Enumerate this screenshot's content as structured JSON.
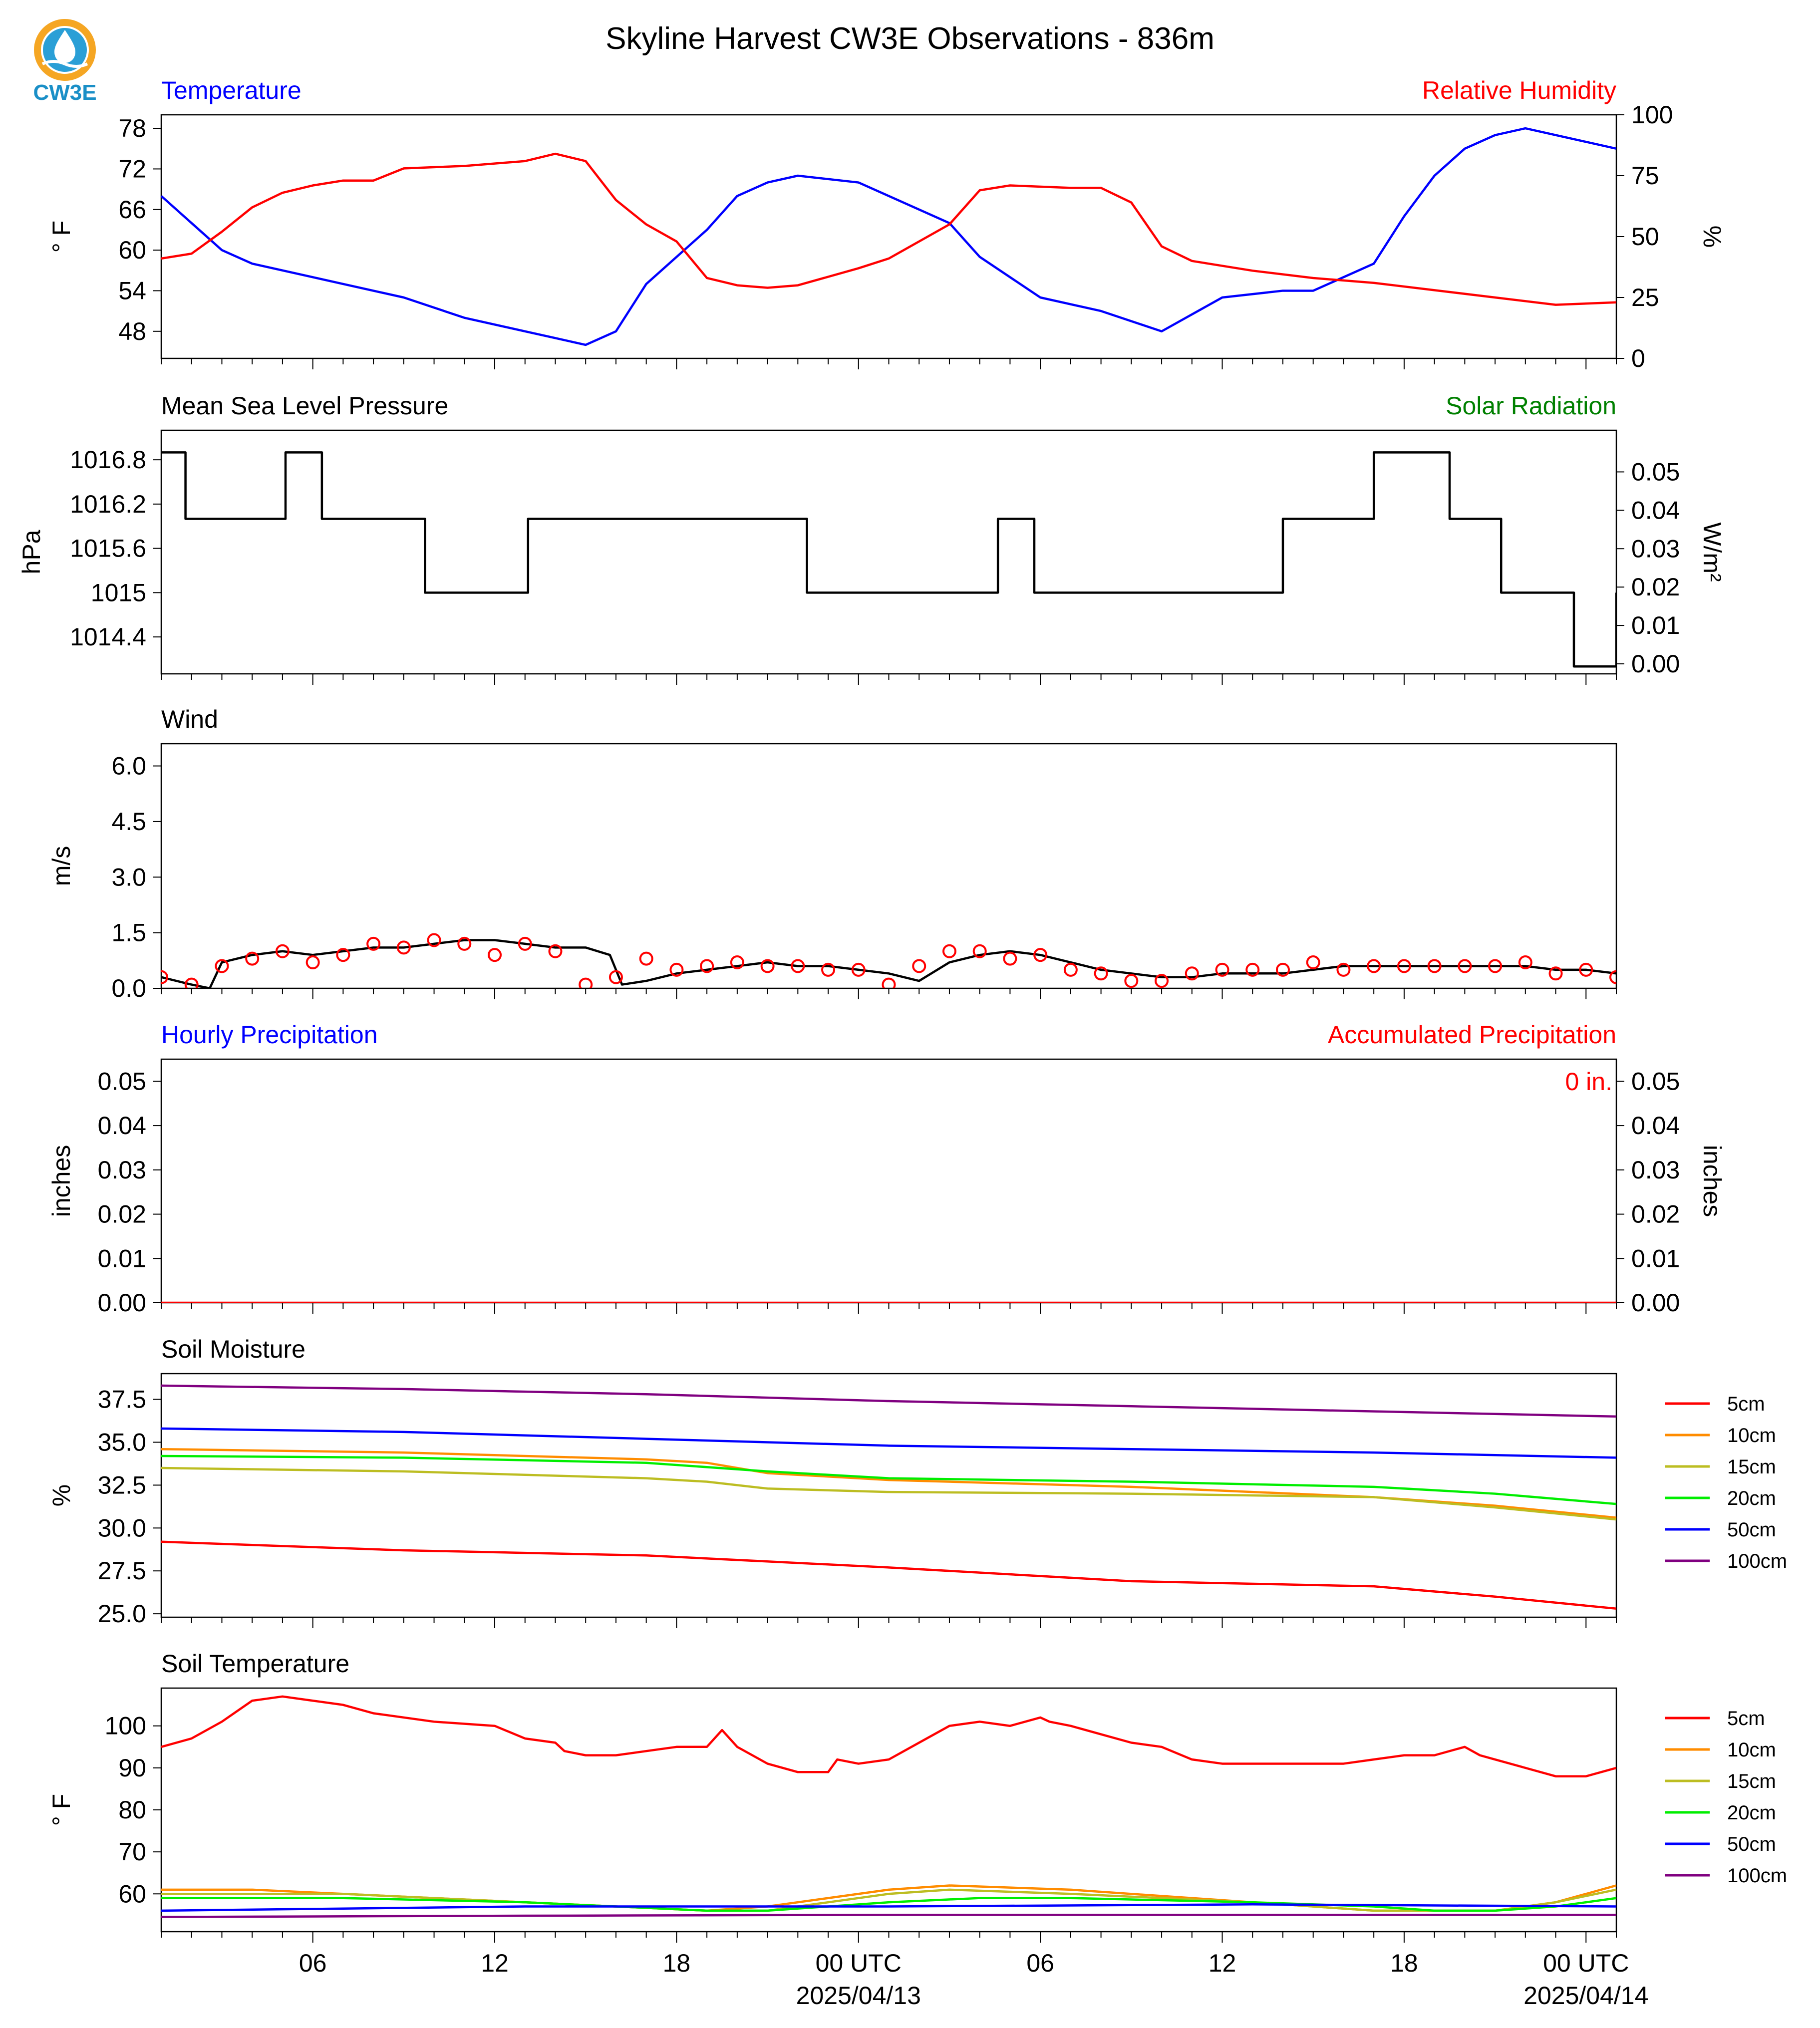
{
  "title": "Skyline Harvest CW3E Observations - 836m",
  "logo": {
    "text": "CW3E",
    "icon": "water-drop-logo-icon",
    "color": "#1a8fc7"
  },
  "x_axis": {
    "start": "2025-04-12T01:00Z",
    "end": "2025-04-14T01:00Z",
    "tick_labels": [
      "06",
      "12",
      "18",
      "00 UTC",
      "06",
      "12",
      "18",
      "00 UTC"
    ],
    "date_labels": [
      "2025/04/13",
      "2025/04/14"
    ]
  },
  "colors": {
    "blue": "#0000ff",
    "red": "#ff0000",
    "green": "#008000",
    "black": "#000000",
    "orange": "#ff8c00",
    "olive": "#bcbd22",
    "lime": "#00ee00",
    "purple": "#800080"
  },
  "chart_data": [
    {
      "type": "line",
      "left_label": "Temperature",
      "right_label": "Relative Humidity",
      "ylabel": "° F",
      "ylabel_right": "%",
      "ylim": [
        44,
        80
      ],
      "yticks": [
        48,
        54,
        60,
        66,
        72,
        78
      ],
      "ylim_right": [
        0,
        100
      ],
      "yticks_right": [
        0,
        25,
        50,
        75,
        100
      ],
      "series": [
        {
          "name": "Temperature",
          "axis": "left",
          "color": "#0000ff",
          "x": [
            0,
            2,
            3,
            5,
            6,
            8,
            10,
            12,
            13,
            14,
            15,
            16,
            17,
            18,
            19,
            20,
            21,
            23,
            24,
            26,
            27,
            29,
            31,
            33,
            35,
            37,
            38,
            40,
            41,
            42,
            43,
            44,
            45,
            47,
            48
          ],
          "y": [
            68,
            60,
            58,
            56,
            55,
            53,
            50,
            48,
            47,
            46,
            48,
            55,
            59,
            63,
            68,
            70,
            71,
            70,
            68,
            64,
            59,
            53,
            51,
            48,
            53,
            54,
            54,
            58,
            65,
            71,
            75,
            77,
            78,
            76,
            75
          ]
        },
        {
          "name": "Relative Humidity",
          "axis": "right",
          "color": "#ff0000",
          "x": [
            0,
            1,
            2,
            3,
            4,
            5,
            6,
            7,
            8,
            10,
            12,
            13,
            14,
            15,
            16,
            17,
            18,
            19,
            20,
            21,
            23,
            24,
            26,
            27,
            28,
            30,
            31,
            32,
            33,
            34,
            35,
            36,
            38,
            40,
            42,
            44,
            46,
            48
          ],
          "y": [
            41,
            43,
            52,
            62,
            68,
            71,
            73,
            73,
            78,
            79,
            81,
            84,
            81,
            65,
            55,
            48,
            33,
            30,
            29,
            30,
            37,
            41,
            55,
            69,
            71,
            70,
            70,
            64,
            46,
            40,
            38,
            36,
            33,
            31,
            28,
            25,
            22,
            23
          ]
        }
      ]
    },
    {
      "type": "line",
      "left_label": "Mean Sea Level Pressure",
      "right_label": "Solar Radiation",
      "ylabel": "hPa",
      "ylabel_right": "W/m²",
      "ylim": [
        1013.9,
        1017.2
      ],
      "yticks": [
        1014.4,
        1015.0,
        1015.6,
        1016.2,
        1016.8
      ],
      "yticks_right_labels": [
        "0.00",
        "0.01",
        "0.02",
        "0.03",
        "0.04",
        "0.05"
      ],
      "series": [
        {
          "name": "Pressure",
          "color": "#000000",
          "step": true,
          "x": [
            0,
            0.8,
            4.1,
            5.3,
            8.7,
            12.1,
            12.3,
            21.3,
            27.6,
            28.8,
            37.0,
            40.0,
            42.5,
            44.2,
            46.6,
            48
          ],
          "y": [
            1016.9,
            1016.0,
            1016.9,
            1016.0,
            1015.0,
            1016.0,
            1016.0,
            1015.0,
            1016.0,
            1015.0,
            1016.0,
            1016.9,
            1016.0,
            1015.0,
            1014.0,
            1015.0
          ]
        }
      ]
    },
    {
      "type": "line",
      "left_label": "Wind",
      "ylabel": "m/s",
      "ylim": [
        0,
        6.6
      ],
      "yticks": [
        "0.0",
        "1.5",
        "3.0",
        "4.5",
        "6.0"
      ],
      "series": [
        {
          "name": "Wind speed",
          "color": "#000000",
          "x": [
            0,
            1,
            1.6,
            2,
            3,
            4,
            5,
            6,
            7,
            8,
            9,
            10,
            11,
            12,
            13,
            14,
            14.8,
            15.2,
            16,
            17,
            18,
            19,
            20,
            21,
            22,
            23,
            24,
            25,
            26,
            27,
            28,
            29,
            30,
            31,
            32,
            33,
            34,
            35,
            36,
            37,
            38,
            39,
            40,
            41,
            42,
            43,
            44,
            45,
            46,
            47,
            48
          ],
          "y": [
            0.3,
            0.1,
            0.0,
            0.7,
            0.9,
            1.0,
            0.9,
            1.0,
            1.1,
            1.1,
            1.2,
            1.3,
            1.3,
            1.2,
            1.1,
            1.1,
            0.9,
            0.1,
            0.2,
            0.4,
            0.5,
            0.6,
            0.7,
            0.6,
            0.6,
            0.5,
            0.4,
            0.2,
            0.7,
            0.9,
            1.0,
            0.9,
            0.7,
            0.5,
            0.4,
            0.3,
            0.3,
            0.4,
            0.4,
            0.4,
            0.5,
            0.6,
            0.6,
            0.6,
            0.6,
            0.6,
            0.6,
            0.6,
            0.5,
            0.5,
            0.4
          ]
        },
        {
          "name": "Gust markers",
          "color": "#ff0000",
          "marker": "circle",
          "x": [
            0,
            1,
            2,
            3,
            4,
            5,
            6,
            7,
            8,
            9,
            10,
            11,
            12,
            13,
            14,
            15,
            16,
            17,
            18,
            19,
            20,
            21,
            22,
            23,
            24,
            25,
            26,
            27,
            28,
            29,
            30,
            31,
            32,
            33,
            34,
            35,
            36,
            37,
            38,
            39,
            40,
            41,
            42,
            43,
            44,
            45,
            46,
            47,
            48
          ],
          "y": [
            0.3,
            0.1,
            0.6,
            0.8,
            1.0,
            0.7,
            0.9,
            1.2,
            1.1,
            1.3,
            1.2,
            0.9,
            1.2,
            1.0,
            0.1,
            0.3,
            0.8,
            0.5,
            0.6,
            0.7,
            0.6,
            0.6,
            0.5,
            0.5,
            0.1,
            0.6,
            1.0,
            1.0,
            0.8,
            0.9,
            0.5,
            0.4,
            0.2,
            0.2,
            0.4,
            0.5,
            0.5,
            0.5,
            0.7,
            0.5,
            0.6,
            0.6,
            0.6,
            0.6,
            0.6,
            0.7,
            0.4,
            0.5,
            0.3
          ]
        }
      ]
    },
    {
      "type": "line",
      "left_label": "Hourly Precipitation",
      "right_label": "Accumulated Precipitation",
      "ylabel": "inches",
      "ylabel_right": "inches",
      "ylim": [
        0,
        0.055
      ],
      "yticks": [
        "0.00",
        "0.01",
        "0.02",
        "0.03",
        "0.04",
        "0.05"
      ],
      "annotation": "0 in.",
      "series": [
        {
          "name": "Accumulated Precipitation",
          "color": "#ff0000",
          "x": [
            0,
            48
          ],
          "y": [
            0,
            0
          ]
        }
      ]
    },
    {
      "type": "line",
      "left_label": "Soil Moisture",
      "ylabel": "%",
      "ylim": [
        24.8,
        39.0
      ],
      "yticks": [
        "25.0",
        "27.5",
        "30.0",
        "32.5",
        "35.0",
        "37.5"
      ],
      "legend": "right",
      "series": [
        {
          "name": "5cm",
          "color": "#ff0000",
          "x": [
            0,
            8,
            16,
            24,
            32,
            40,
            44,
            48
          ],
          "y": [
            29.2,
            28.7,
            28.4,
            27.7,
            26.9,
            26.6,
            26.0,
            25.3
          ]
        },
        {
          "name": "10cm",
          "color": "#ff8c00",
          "x": [
            0,
            8,
            16,
            18,
            20,
            24,
            32,
            40,
            44,
            48
          ],
          "y": [
            34.6,
            34.4,
            34.0,
            33.8,
            33.2,
            32.8,
            32.4,
            31.8,
            31.3,
            30.6
          ]
        },
        {
          "name": "15cm",
          "color": "#bcbd22",
          "x": [
            0,
            8,
            16,
            18,
            20,
            24,
            32,
            40,
            44,
            48
          ],
          "y": [
            33.5,
            33.3,
            32.9,
            32.7,
            32.3,
            32.1,
            32.0,
            31.8,
            31.2,
            30.5
          ]
        },
        {
          "name": "20cm",
          "color": "#00ee00",
          "x": [
            0,
            8,
            16,
            20,
            24,
            32,
            40,
            44,
            48
          ],
          "y": [
            34.2,
            34.1,
            33.8,
            33.3,
            32.9,
            32.7,
            32.4,
            32.0,
            31.4
          ]
        },
        {
          "name": "50cm",
          "color": "#0000ff",
          "x": [
            0,
            8,
            16,
            24,
            32,
            40,
            48
          ],
          "y": [
            35.8,
            35.6,
            35.2,
            34.8,
            34.6,
            34.4,
            34.1
          ]
        },
        {
          "name": "100cm",
          "color": "#800080",
          "x": [
            0,
            8,
            16,
            24,
            32,
            40,
            48
          ],
          "y": [
            38.3,
            38.1,
            37.8,
            37.4,
            37.1,
            36.8,
            36.5
          ]
        }
      ]
    },
    {
      "type": "line",
      "left_label": "Soil Temperature",
      "ylabel": "° F",
      "ylim": [
        51,
        109
      ],
      "yticks": [
        60,
        70,
        80,
        90,
        100
      ],
      "legend": "right",
      "series": [
        {
          "name": "5cm",
          "color": "#ff0000",
          "x": [
            0,
            1,
            2,
            3,
            4,
            5,
            6,
            7,
            9,
            11,
            12,
            13,
            13.3,
            14,
            15,
            16,
            17,
            18,
            18.5,
            19,
            20,
            21,
            22,
            22.3,
            23,
            24,
            25,
            26,
            27,
            28,
            29,
            29.3,
            30,
            31,
            32,
            33,
            34,
            35,
            36,
            38,
            39,
            40,
            41,
            42,
            43,
            43.5,
            44,
            45,
            46,
            47,
            48
          ],
          "y": [
            95,
            97,
            101,
            106,
            107,
            106,
            105,
            103,
            101,
            100,
            97,
            96,
            94,
            93,
            93,
            94,
            95,
            95,
            99,
            95,
            91,
            89,
            89,
            92,
            91,
            92,
            96,
            100,
            101,
            100,
            102,
            101,
            100,
            98,
            96,
            95,
            92,
            91,
            91,
            91,
            91,
            92,
            93,
            93,
            95,
            93,
            92,
            90,
            88,
            88,
            90
          ]
        },
        {
          "name": "10cm",
          "color": "#ff8c00",
          "x": [
            0,
            3,
            6,
            12,
            18,
            20,
            24,
            26,
            30,
            36,
            40,
            42,
            44,
            46,
            48
          ],
          "y": [
            61,
            61,
            60,
            58,
            56,
            57,
            61,
            62,
            61,
            58,
            56,
            56,
            56,
            58,
            62
          ]
        },
        {
          "name": "15cm",
          "color": "#bcbd22",
          "x": [
            0,
            3,
            6,
            12,
            18,
            20,
            24,
            26,
            30,
            36,
            40,
            42,
            44,
            46,
            48
          ],
          "y": [
            60,
            60,
            60,
            58,
            56,
            56,
            60,
            61,
            60,
            58,
            56,
            56,
            56,
            58,
            61
          ]
        },
        {
          "name": "20cm",
          "color": "#00ee00",
          "x": [
            0,
            3,
            6,
            12,
            18,
            20,
            24,
            27,
            30,
            36,
            40,
            42,
            44,
            46,
            48
          ],
          "y": [
            59,
            59,
            59,
            58,
            56,
            56,
            58,
            59,
            59,
            58,
            57,
            56,
            56,
            57,
            59
          ]
        },
        {
          "name": "50cm",
          "color": "#0000ff",
          "x": [
            0,
            6,
            12,
            24,
            36,
            48
          ],
          "y": [
            56,
            56.5,
            57,
            57,
            57.5,
            57
          ]
        },
        {
          "name": "100cm",
          "color": "#800080",
          "x": [
            0,
            12,
            24,
            36,
            48
          ],
          "y": [
            54.5,
            54.8,
            55,
            55,
            55
          ]
        }
      ]
    }
  ]
}
